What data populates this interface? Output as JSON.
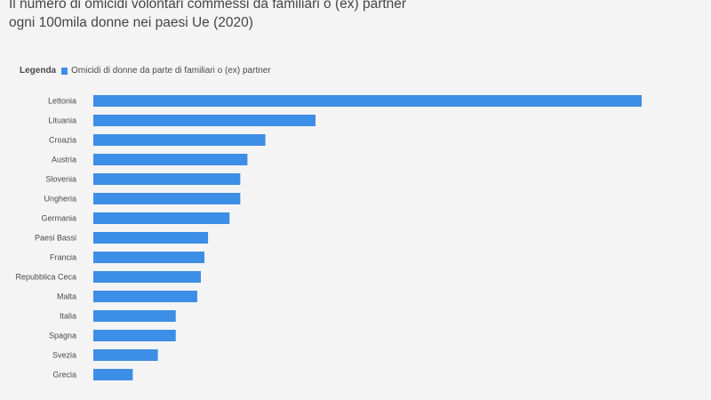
{
  "title": {
    "line1": "Il numero di omicidi volontari commessi da familiari o (ex) partner",
    "line2": "ogni 100mila donne nei paesi Ue (2020)"
  },
  "legend": {
    "title": "Legenda",
    "label": "Omicidi di donne da parte di familiari o (ex) partner"
  },
  "colors": {
    "bar": "#3d8ee6",
    "background": "#f4f4f4"
  },
  "chart_data": {
    "type": "bar",
    "orientation": "horizontal",
    "categories": [
      "Lettonia",
      "Lituania",
      "Croazia",
      "Austria",
      "Slovenia",
      "Ungheria",
      "Germania",
      "Paesi Bassi",
      "Francia",
      "Repubblica Ceca",
      "Malta",
      "Italia",
      "Spagna",
      "Svezia",
      "Grecia"
    ],
    "series": [
      {
        "name": "Omicidi di donne da parte di familiari o (ex) partner",
        "values": [
          1.53,
          0.62,
          0.48,
          0.43,
          0.41,
          0.41,
          0.38,
          0.32,
          0.31,
          0.3,
          0.29,
          0.23,
          0.23,
          0.18,
          0.11
        ]
      }
    ],
    "xlim": [
      0,
      1.53
    ],
    "grid": false,
    "legend_position": "top-left"
  }
}
